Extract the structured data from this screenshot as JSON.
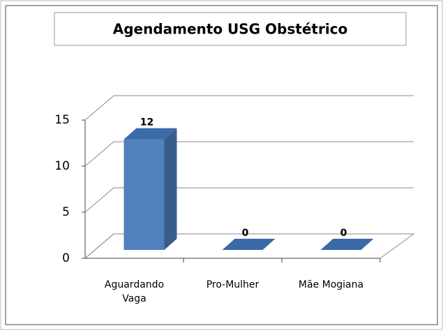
{
  "chart_data": {
    "type": "bar3d",
    "title": "Agendamento USG Obstétrico",
    "categories": [
      "Aguardando Vaga",
      "Pro-Mulher",
      "Mãe Mogiana"
    ],
    "values": [
      12,
      0,
      0
    ],
    "color": "#4f81bd",
    "ylim": [
      0,
      15
    ],
    "yticks": [
      0,
      5,
      10,
      15
    ],
    "grid": true
  }
}
